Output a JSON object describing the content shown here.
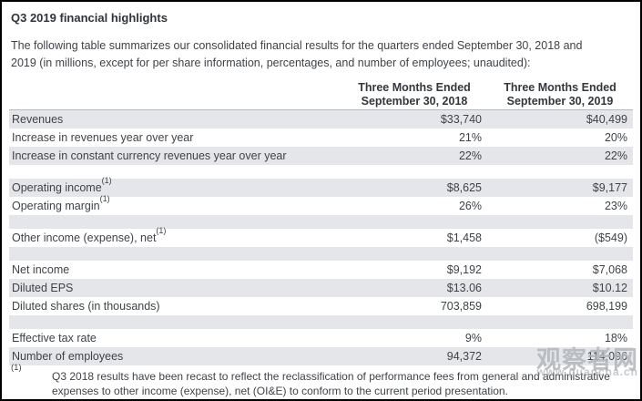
{
  "title": "Q3 2019 financial highlights",
  "intro": {
    "line1": "The following table summarizes our consolidated financial results for the quarters ended September 30, 2018 and",
    "line2": "2019 (in millions, except for per share information, percentages, and number of employees; unaudited):"
  },
  "table": {
    "columns": [
      {
        "line1": "Three Months Ended",
        "line2": "September 30, 2018"
      },
      {
        "line1": "Three Months Ended",
        "line2": "September 30, 2019"
      }
    ],
    "rows": [
      {
        "label": "Revenues",
        "sup": "",
        "v2018": "$33,740",
        "v2019": "$40,499"
      },
      {
        "label": "Increase in revenues year over year",
        "sup": "",
        "v2018": "21%",
        "v2019": "20%"
      },
      {
        "label": "Increase in constant currency revenues year over year",
        "sup": "",
        "v2018": "22%",
        "v2019": "22%"
      },
      {
        "type": "spacer"
      },
      {
        "label": "Operating income",
        "sup": "(1)",
        "v2018": "$8,625",
        "v2019": "$9,177"
      },
      {
        "label": "Operating margin",
        "sup": "(1)",
        "v2018": "26%",
        "v2019": "23%"
      },
      {
        "type": "spacer"
      },
      {
        "label": "Other income (expense), net",
        "sup": "(1)",
        "v2018": "$1,458",
        "v2019": "($549)"
      },
      {
        "type": "spacer"
      },
      {
        "label": "Net income",
        "sup": "",
        "v2018": "$9,192",
        "v2019": "$7,068"
      },
      {
        "label": "Diluted EPS",
        "sup": "",
        "v2018": "$13.06",
        "v2019": "$10.12"
      },
      {
        "label": "Diluted shares (in thousands)",
        "sup": "",
        "v2018": "703,859",
        "v2019": "698,199"
      },
      {
        "type": "spacer"
      },
      {
        "label": "Effective tax rate",
        "sup": "",
        "v2018": "9%",
        "v2019": "18%"
      },
      {
        "label": "Number of employees",
        "sup": "",
        "v2018": "94,372",
        "v2019": "114,096"
      }
    ]
  },
  "footnote": {
    "marker": "(1)",
    "line1": "Q3 2018 results have been recast to reflect the reclassification of performance fees from general and administrative",
    "line2": "expenses to other income (expense), net (OI&E) to conform to the current period presentation."
  },
  "watermark": {
    "text": "观察者网",
    "url": "www.guancha.cn"
  },
  "colors": {
    "row_shade": "#e4e6ea",
    "header_rule": "#b6b9bd",
    "text_dark": "#3f4347",
    "frame": "#000000",
    "watermark_gray": "#7d838a"
  }
}
